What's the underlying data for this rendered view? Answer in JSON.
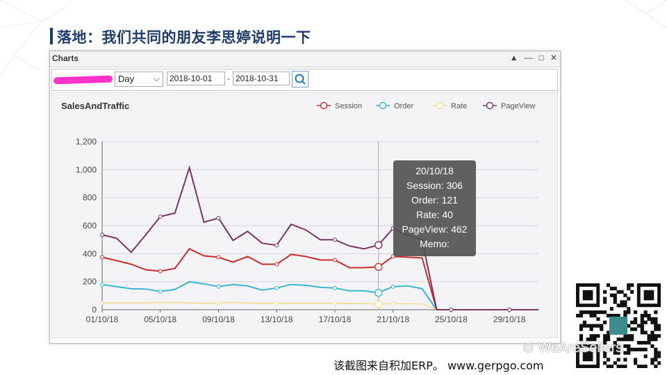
{
  "slide": {
    "title": "落地：我们共同的朋友李思婷说明一下",
    "caption": "该截图来自积加ERP。 www.gerpgo.com",
    "watermark": "WeAreSellers"
  },
  "window": {
    "title": "Charts",
    "controls": [
      "▲",
      "—",
      "□",
      "✕"
    ]
  },
  "toolbar": {
    "granularity": "Day",
    "start_date": "2018-10-01",
    "end_date": "2018-10-31",
    "separator": "-"
  },
  "tooltip": {
    "date": "20/10/18",
    "session": "Session: 306",
    "order": "Order: 121",
    "rate": "Rate: 40",
    "pageview": "PageView: 462",
    "memo": "Memo:"
  },
  "colors": {
    "session": "#cc2b2b",
    "order": "#37b5cf",
    "rate": "#f2dc90",
    "pageview": "#7a3462"
  },
  "chart_data": {
    "type": "line",
    "title": "SalesAndTraffic",
    "ylim": [
      0,
      1200
    ],
    "yticks": [
      "0",
      "200",
      "400",
      "600",
      "800",
      "1,000",
      "1,200"
    ],
    "ytick_values": [
      0,
      200,
      400,
      600,
      800,
      1000,
      1200
    ],
    "x": [
      "01/10/18",
      "02/10/18",
      "03/10/18",
      "04/10/18",
      "05/10/18",
      "06/10/18",
      "07/10/18",
      "08/10/18",
      "09/10/18",
      "10/10/18",
      "11/10/18",
      "12/10/18",
      "13/10/18",
      "14/10/18",
      "15/10/18",
      "16/10/18",
      "17/10/18",
      "18/10/18",
      "19/10/18",
      "20/10/18",
      "21/10/18",
      "22/10/18",
      "23/10/18",
      "24/10/18",
      "25/10/18",
      "26/10/18",
      "27/10/18",
      "28/10/18",
      "29/10/18",
      "30/10/18",
      "31/10/18"
    ],
    "xtick_labels": [
      "01/10/18",
      "05/10/18",
      "09/10/18",
      "13/10/18",
      "17/10/18",
      "21/10/18",
      "25/10/18",
      "29/10/18"
    ],
    "xtick_index": [
      0,
      4,
      8,
      12,
      16,
      20,
      24,
      28
    ],
    "legend_position": "top-right",
    "hover_index": 19,
    "series": [
      {
        "name": "Session",
        "key": "session",
        "values": [
          375,
          350,
          325,
          285,
          275,
          295,
          435,
          385,
          375,
          340,
          380,
          325,
          325,
          395,
          380,
          355,
          355,
          300,
          300,
          306,
          380,
          375,
          370,
          0,
          0,
          0,
          0,
          0,
          0,
          0,
          0
        ]
      },
      {
        "name": "Order",
        "key": "order",
        "values": [
          180,
          165,
          150,
          148,
          130,
          145,
          200,
          185,
          165,
          180,
          170,
          140,
          155,
          180,
          175,
          160,
          155,
          135,
          135,
          121,
          165,
          170,
          150,
          0,
          0,
          0,
          0,
          0,
          0,
          0,
          0
        ]
      },
      {
        "name": "Rate",
        "key": "rate",
        "values": [
          48,
          48,
          48,
          48,
          52,
          50,
          48,
          46,
          46,
          52,
          48,
          44,
          46,
          46,
          46,
          46,
          46,
          44,
          44,
          40,
          44,
          42,
          42,
          0,
          0,
          0,
          0,
          0,
          0,
          0,
          0
        ]
      },
      {
        "name": "PageView",
        "key": "pageview",
        "values": [
          535,
          510,
          410,
          535,
          665,
          690,
          1015,
          625,
          655,
          495,
          560,
          475,
          460,
          610,
          570,
          500,
          500,
          455,
          435,
          462,
          580,
          530,
          500,
          0,
          0,
          0,
          0,
          0,
          0,
          0,
          0
        ]
      }
    ]
  }
}
